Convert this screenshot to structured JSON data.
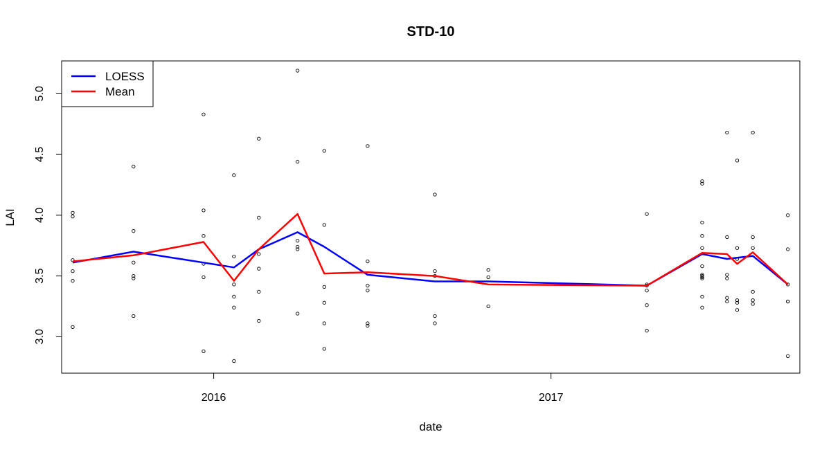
{
  "chart_data": {
    "type": "scatter",
    "title": "STD-10",
    "xlabel": "date",
    "ylabel": "LAI",
    "xlim": [
      "2015-07-20",
      "2017-09-28"
    ],
    "ylim": [
      2.7,
      5.27
    ],
    "x_ticks": [
      {
        "date": "2016-01-01",
        "label": "2016"
      },
      {
        "date": "2017-01-01",
        "label": "2017"
      }
    ],
    "y_ticks": [
      3.0,
      3.5,
      4.0,
      4.5,
      5.0
    ],
    "y_tick_labels": [
      "3.0",
      "3.5",
      "4.0",
      "4.5",
      "5.0"
    ],
    "legend": {
      "position": "top-left",
      "entries": [
        {
          "label": "LOESS",
          "color": "#0000ff"
        },
        {
          "label": "Mean",
          "color": "#ff0000"
        }
      ]
    },
    "points": [
      {
        "date": "2015-08-01",
        "values": [
          4.02,
          3.99,
          3.63,
          3.54,
          3.46,
          3.08
        ]
      },
      {
        "date": "2015-10-06",
        "values": [
          4.4,
          3.87,
          3.61,
          3.5,
          3.48,
          3.17
        ]
      },
      {
        "date": "2015-12-21",
        "values": [
          4.83,
          4.04,
          3.83,
          3.6,
          3.49,
          2.88
        ]
      },
      {
        "date": "2016-01-23",
        "values": [
          4.33,
          3.66,
          3.43,
          3.33,
          3.24,
          2.8
        ]
      },
      {
        "date": "2016-02-19",
        "values": [
          4.63,
          3.98,
          3.68,
          3.56,
          3.37,
          3.13
        ]
      },
      {
        "date": "2016-04-01",
        "values": [
          5.19,
          4.44,
          3.79,
          3.74,
          3.72,
          3.19
        ]
      },
      {
        "date": "2016-04-30",
        "values": [
          4.53,
          3.92,
          3.41,
          3.28,
          3.11,
          2.9
        ]
      },
      {
        "date": "2016-06-16",
        "values": [
          4.57,
          3.62,
          3.42,
          3.38,
          3.11,
          3.09
        ]
      },
      {
        "date": "2016-08-28",
        "values": [
          4.17,
          3.54,
          3.5,
          3.17,
          3.11
        ]
      },
      {
        "date": "2016-10-25",
        "values": [
          3.55,
          3.49,
          3.25
        ]
      },
      {
        "date": "2017-04-15",
        "values": [
          4.01,
          3.43,
          3.42,
          3.38,
          3.26,
          3.05
        ]
      },
      {
        "date": "2017-06-14",
        "values": [
          4.28,
          4.26,
          3.94,
          3.83,
          3.73,
          3.58,
          3.51,
          3.5,
          3.49,
          3.48,
          3.33,
          3.24
        ]
      },
      {
        "date": "2017-07-11",
        "values": [
          4.68,
          3.82,
          3.51,
          3.48,
          3.32,
          3.29
        ]
      },
      {
        "date": "2017-07-22",
        "values": [
          4.45,
          3.73,
          3.64,
          3.3,
          3.28,
          3.22
        ]
      },
      {
        "date": "2017-08-08",
        "values": [
          4.68,
          3.82,
          3.73,
          3.37,
          3.3,
          3.27
        ]
      },
      {
        "date": "2017-09-15",
        "values": [
          4.0,
          3.72,
          3.43,
          3.29,
          3.29,
          2.84
        ]
      }
    ],
    "series": [
      {
        "name": "LOESS",
        "color": "#0000ff",
        "x": [
          "2015-08-01",
          "2015-10-06",
          "2015-12-21",
          "2016-01-23",
          "2016-02-19",
          "2016-04-01",
          "2016-04-30",
          "2016-06-16",
          "2016-08-28",
          "2016-10-25",
          "2017-04-15",
          "2017-06-14",
          "2017-07-11",
          "2017-07-22",
          "2017-08-08",
          "2017-09-15"
        ],
        "y": [
          3.61,
          3.7,
          3.61,
          3.57,
          3.72,
          3.86,
          3.74,
          3.51,
          3.455,
          3.455,
          3.42,
          3.68,
          3.64,
          3.65,
          3.665,
          3.43
        ]
      },
      {
        "name": "Mean",
        "color": "#ff0000",
        "x": [
          "2015-08-01",
          "2015-10-06",
          "2015-12-21",
          "2016-01-23",
          "2016-02-19",
          "2016-04-01",
          "2016-04-30",
          "2016-06-16",
          "2016-08-28",
          "2016-10-25",
          "2017-04-15",
          "2017-06-14",
          "2017-07-11",
          "2017-07-22",
          "2017-08-08",
          "2017-09-15"
        ],
        "y": [
          3.62,
          3.67,
          3.78,
          3.46,
          3.72,
          4.01,
          3.52,
          3.53,
          3.5,
          3.43,
          3.42,
          3.69,
          3.68,
          3.6,
          3.695,
          3.43
        ]
      }
    ]
  }
}
